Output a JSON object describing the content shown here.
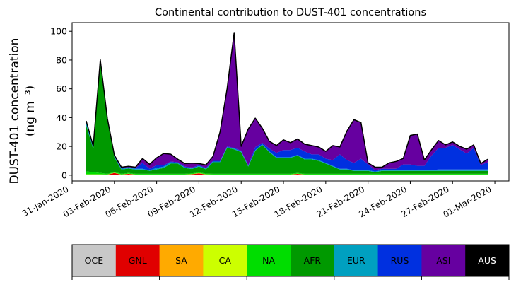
{
  "chart_data": {
    "type": "area",
    "stacked": true,
    "title": "Continental contribution to DUST-401 concentrations",
    "ylabel_line1": "DUST-401 concentration",
    "ylabel_line2": "(ng m⁻³)",
    "xlabel": "",
    "ylim": [
      -4,
      106
    ],
    "yticks": [
      0,
      20,
      40,
      60,
      80,
      100
    ],
    "x_start": "2020-01-31",
    "x_end": "2020-03-02",
    "xticks": [
      "31-Jan-2020",
      "03-Feb-2020",
      "06-Feb-2020",
      "09-Feb-2020",
      "12-Feb-2020",
      "15-Feb-2020",
      "18-Feb-2020",
      "21-Feb-2020",
      "24-Feb-2020",
      "27-Feb-2020",
      "01-Mar-2020"
    ],
    "grid": false,
    "x": [
      "2020-02-01",
      "2020-02-01 12:00",
      "2020-02-02",
      "2020-02-02 12:00",
      "2020-02-03",
      "2020-02-03 12:00",
      "2020-02-04",
      "2020-02-04 12:00",
      "2020-02-05",
      "2020-02-05 12:00",
      "2020-02-06",
      "2020-02-06 12:00",
      "2020-02-07",
      "2020-02-07 12:00",
      "2020-02-08",
      "2020-02-08 12:00",
      "2020-02-09",
      "2020-02-09 12:00",
      "2020-02-10",
      "2020-02-10 12:00",
      "2020-02-11",
      "2020-02-11 12:00",
      "2020-02-12",
      "2020-02-12 12:00",
      "2020-02-13",
      "2020-02-13 12:00",
      "2020-02-14",
      "2020-02-14 12:00",
      "2020-02-15",
      "2020-02-15 12:00",
      "2020-02-16",
      "2020-02-16 12:00",
      "2020-02-17",
      "2020-02-17 12:00",
      "2020-02-18",
      "2020-02-18 12:00",
      "2020-02-19",
      "2020-02-19 12:00",
      "2020-02-20",
      "2020-02-20 12:00",
      "2020-02-21",
      "2020-02-21 12:00",
      "2020-02-22",
      "2020-02-22 12:00",
      "2020-02-23",
      "2020-02-23 12:00",
      "2020-02-24",
      "2020-02-24 12:00",
      "2020-02-25",
      "2020-02-25 12:00",
      "2020-02-26",
      "2020-02-26 12:00",
      "2020-02-27",
      "2020-02-27 12:00",
      "2020-02-28",
      "2020-02-28 12:00",
      "2020-02-29",
      "2020-02-29 12:00"
    ],
    "series": [
      {
        "name": "OCE",
        "color": "#c8c8c8",
        "values": [
          0.2,
          0.2,
          0.2,
          0.1,
          0.1,
          0.1,
          0.1,
          0.1,
          0.1,
          0.1,
          0.1,
          0.1,
          0.1,
          0.1,
          0.1,
          0.1,
          0.1,
          0.1,
          0.1,
          0.1,
          0.1,
          0.1,
          0.1,
          0.1,
          0.1,
          0.1,
          0.1,
          0.1,
          0.1,
          0.1,
          0.1,
          0.1,
          0.1,
          0.1,
          0.1,
          0.1,
          0.1,
          0.1,
          0.1,
          0.1,
          0.1,
          0.1,
          0.1,
          0.1,
          0.1,
          0.1,
          0.1,
          0.1,
          0.1,
          0.1,
          0.1,
          0.1,
          0.1,
          0.1,
          0.1,
          0.1,
          0.1,
          0.1
        ]
      },
      {
        "name": "GNL",
        "color": "#e00000",
        "values": [
          0.2,
          0.2,
          0.2,
          0.2,
          1.5,
          0.2,
          0.8,
          0.2,
          0.2,
          0.2,
          0.2,
          0.2,
          0.2,
          0.2,
          0.2,
          0.5,
          1.2,
          0.3,
          0.2,
          0.2,
          0.2,
          0.2,
          0.2,
          0.2,
          0.2,
          0.2,
          0.2,
          0.2,
          0.2,
          0.2,
          0.8,
          0.2,
          0.2,
          0.2,
          0.2,
          0.2,
          0.2,
          0.2,
          0.2,
          0.2,
          0.2,
          0.2,
          0.2,
          0.2,
          0.2,
          0.2,
          0.2,
          0.2,
          0.2,
          0.2,
          0.2,
          0.2,
          0.2,
          0.2,
          0.2,
          0.2,
          0.2,
          0.2
        ]
      },
      {
        "name": "SA",
        "color": "#ffaa00",
        "values": [
          0.1,
          0.1,
          0.1,
          0.1,
          0.1,
          0.1,
          0.1,
          0.1,
          0.1,
          0.1,
          0.1,
          0.1,
          0.1,
          0.1,
          0.1,
          0.1,
          0.1,
          0.1,
          0.1,
          0.1,
          0.1,
          0.1,
          0.1,
          0.1,
          0.1,
          0.1,
          0.1,
          0.1,
          0.1,
          0.1,
          0.1,
          0.1,
          0.1,
          0.1,
          0.1,
          0.1,
          0.1,
          0.1,
          0.1,
          0.1,
          0.1,
          0.1,
          0.1,
          0.1,
          0.1,
          0.1,
          0.1,
          0.1,
          0.1,
          0.1,
          0.1,
          0.1,
          0.1,
          0.1,
          0.1,
          0.1,
          0.1,
          0.1
        ]
      },
      {
        "name": "CA",
        "color": "#ccff00",
        "values": [
          0.1,
          0.1,
          0.1,
          0.1,
          0.1,
          0.1,
          0.1,
          0.1,
          0.1,
          0.1,
          0.1,
          0.1,
          0.1,
          0.1,
          0.1,
          0.1,
          0.1,
          0.1,
          0.1,
          0.1,
          0.1,
          0.1,
          0.1,
          0.1,
          0.1,
          0.1,
          0.1,
          0.1,
          0.1,
          0.1,
          0.1,
          0.1,
          0.1,
          0.1,
          0.1,
          0.1,
          0.1,
          0.1,
          0.1,
          0.1,
          0.1,
          0.1,
          0.1,
          0.1,
          0.1,
          0.1,
          0.1,
          0.1,
          0.1,
          0.1,
          0.1,
          0.1,
          0.1,
          0.1,
          0.1,
          0.1,
          0.1,
          0.1
        ]
      },
      {
        "name": "NA",
        "color": "#00dd00",
        "values": [
          2,
          1.5,
          1,
          0.5,
          0.5,
          0.5,
          0.5,
          0.5,
          0.5,
          0.5,
          0.5,
          0.5,
          0.5,
          0.5,
          0.5,
          0.5,
          0.5,
          0.5,
          0.5,
          0.5,
          0.5,
          0.5,
          0.5,
          0.5,
          0.5,
          0.5,
          0.5,
          0.5,
          0.5,
          0.5,
          0.5,
          0.5,
          0.5,
          0.5,
          0.5,
          0.5,
          0.5,
          0.5,
          0.5,
          0.5,
          0.5,
          0.5,
          0.5,
          0.5,
          0.5,
          0.5,
          0.5,
          0.5,
          0.5,
          0.5,
          0.5,
          0.5,
          0.5,
          0.5,
          0.5,
          0.5,
          0.5,
          0.5
        ]
      },
      {
        "name": "AFR",
        "color": "#009900",
        "values": [
          32,
          16,
          76,
          37,
          10,
          3,
          3,
          3,
          3,
          2,
          3,
          4,
          7,
          7,
          4,
          3,
          4,
          3,
          8,
          8,
          18,
          17,
          15,
          5,
          16,
          20,
          15,
          11,
          11,
          11,
          12,
          10,
          10,
          9,
          7,
          5,
          3,
          3,
          2,
          2,
          2,
          1,
          2,
          2,
          2,
          2,
          2,
          2,
          2,
          2,
          2,
          2,
          2,
          2,
          2,
          2,
          2,
          2
        ]
      },
      {
        "name": "EUR",
        "color": "#00a0c0",
        "values": [
          2,
          1,
          1,
          0.5,
          0.5,
          0.5,
          0.5,
          0.5,
          0.5,
          0.5,
          1,
          1,
          1,
          0.5,
          0.5,
          0.5,
          0.5,
          0.5,
          0.5,
          0.5,
          0.5,
          0.5,
          0.5,
          0.5,
          0.5,
          0.5,
          0.5,
          0.5,
          0.5,
          0.5,
          0.5,
          0.5,
          0.5,
          0.5,
          0.5,
          0.5,
          0.5,
          0.5,
          0.5,
          0.5,
          0.5,
          0.5,
          0.5,
          0.5,
          0.5,
          0.5,
          0.5,
          0.5,
          0.5,
          0.5,
          1,
          1,
          1,
          1,
          1,
          1,
          1,
          1
        ]
      },
      {
        "name": "RUS",
        "color": "#0030e0",
        "values": [
          0.5,
          0.5,
          0.5,
          0.5,
          0.5,
          0.5,
          0.5,
          0.5,
          4,
          1,
          2,
          1,
          0.5,
          0.5,
          0.5,
          0.5,
          0.5,
          0.5,
          0.5,
          0.5,
          0.5,
          0.5,
          0.5,
          0.5,
          2,
          1,
          2,
          3,
          5,
          5,
          5,
          5,
          3,
          4,
          3,
          4,
          10,
          6,
          5,
          8,
          4,
          1,
          1,
          1,
          1,
          4,
          4,
          3,
          3,
          10,
          15,
          15,
          17,
          14,
          11,
          15,
          3,
          5
        ]
      },
      {
        "name": "ASI",
        "color": "#6600a0",
        "values": [
          0.5,
          0.5,
          1,
          0.5,
          0.5,
          0.5,
          0.5,
          0.5,
          3,
          3,
          5,
          8,
          5,
          2,
          2,
          3,
          1,
          2,
          3,
          20,
          40,
          80,
          3,
          25,
          20,
          10,
          5,
          5,
          7,
          5,
          6,
          5,
          6,
          5,
          5,
          10,
          5,
          20,
          30,
          25,
          1,
          2,
          1,
          4,
          5,
          4,
          20,
          22,
          4,
          4,
          5,
          2,
          2,
          2,
          3,
          2,
          1,
          2
        ]
      },
      {
        "name": "AUS",
        "color": "#000000",
        "values": [
          0.1,
          0.1,
          0.1,
          0.1,
          0.1,
          0.1,
          0.1,
          0.1,
          0.1,
          0.1,
          0.1,
          0.1,
          0.1,
          0.1,
          0.1,
          0.1,
          0.1,
          0.1,
          0.1,
          0.1,
          0.1,
          0.1,
          0.1,
          0.1,
          0.1,
          0.1,
          0.1,
          0.1,
          0.1,
          0.1,
          0.1,
          0.1,
          0.1,
          0.1,
          0.1,
          0.1,
          0.1,
          0.1,
          0.1,
          0.1,
          0.1,
          0.1,
          0.1,
          0.1,
          0.1,
          0.1,
          0.1,
          0.1,
          0.1,
          0.1,
          0.1,
          0.1,
          0.1,
          0.1,
          0.1,
          0.1,
          0.1,
          0.1
        ]
      }
    ],
    "total_outline_color": "#000000",
    "legend": {
      "placement": "bottom colorbar",
      "labels": [
        "OCE",
        "GNL",
        "SA",
        "CA",
        "NA",
        "AFR",
        "EUR",
        "RUS",
        "ASI",
        "AUS"
      ],
      "text_colors": [
        "#000000",
        "#000000",
        "#000000",
        "#000000",
        "#000000",
        "#000000",
        "#000000",
        "#000000",
        "#000000",
        "#ffffff"
      ]
    }
  }
}
